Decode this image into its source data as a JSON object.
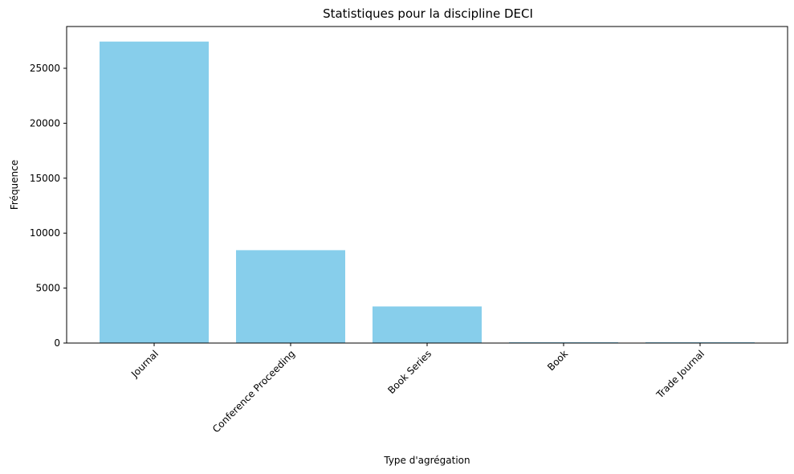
{
  "chart_data": {
    "type": "bar",
    "title": "Statistiques pour la discipline DECI",
    "xlabel": "Type d'agrégation",
    "ylabel": "Fréquence",
    "categories": [
      "Journal",
      "Conference Proceeding",
      "Book Series",
      "Book",
      "Trade Journal"
    ],
    "values": [
      27430,
      8450,
      3330,
      20,
      10
    ],
    "ylim": [
      0,
      28800
    ],
    "yticks": [
      0,
      5000,
      10000,
      15000,
      20000,
      25000
    ],
    "bar_color": "#87CEEB",
    "grid": false,
    "legend": null
  }
}
